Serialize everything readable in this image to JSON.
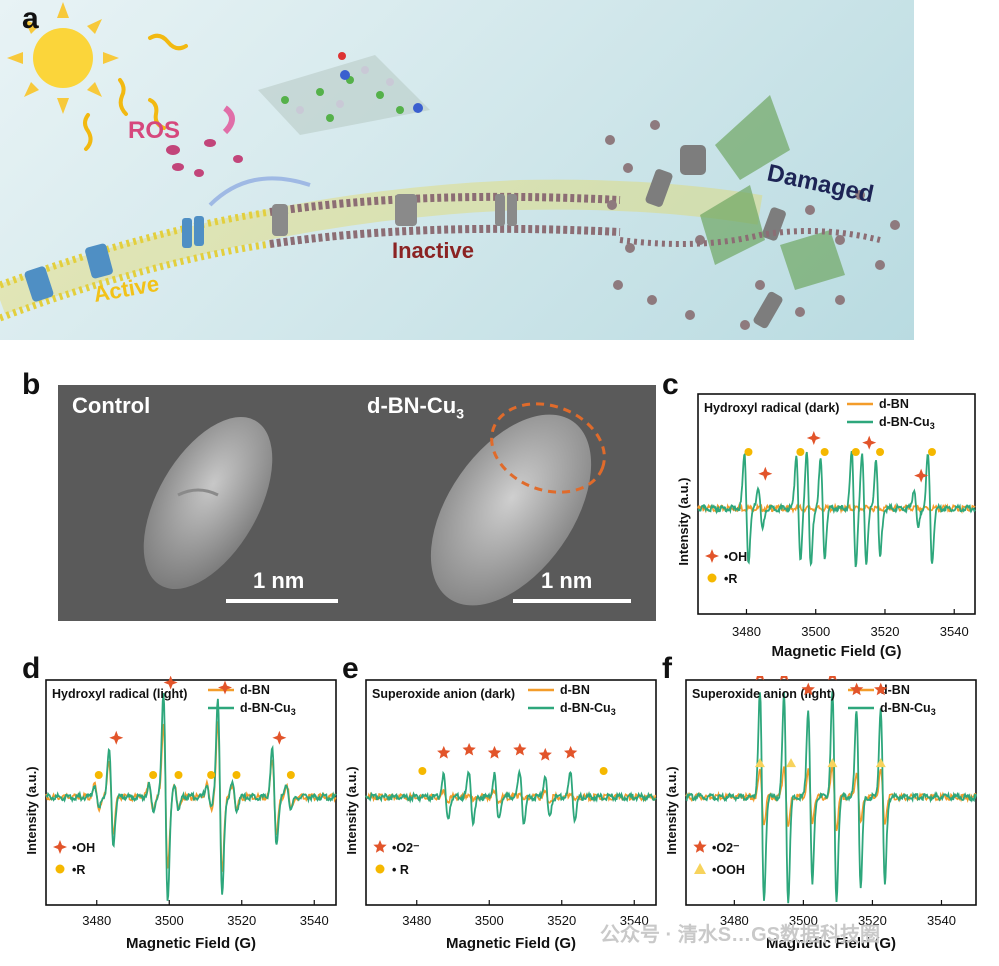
{
  "panel_labels": {
    "a": "a",
    "b": "b",
    "c": "c",
    "d": "d",
    "e": "e",
    "f": "f"
  },
  "panel_a": {
    "ros": "ROS",
    "active": "Active",
    "inactive": "Inactive",
    "damaged": "Damaged"
  },
  "panel_b": {
    "control_title": "Control",
    "treated_title": "d-BN-Cu",
    "treated_title_sub": "3",
    "scale_left": "1 nm",
    "scale_right": "1 nm"
  },
  "colors": {
    "d_bn": "#f39c2a",
    "d_bn_cu3": "#2ea77c",
    "oh_marker": "#e2542a",
    "r_marker": "#f5b800",
    "ooh_marker": "#f7d35c",
    "membrane_active": "#e9d64a",
    "membrane_inactive": "#8c6d74",
    "channel_active": "#4f8fc4",
    "channel_inactive": "#8a8a8a"
  },
  "chart_data": [
    {
      "id": "c",
      "type": "line",
      "title": "Hydroxyl radical (dark)",
      "xlabel": "Magnetic Field (G)",
      "ylabel": "Intensity (a.u.)",
      "xlim": [
        3466,
        3546
      ],
      "xticks": [
        3480,
        3500,
        3520,
        3540
      ],
      "legend": {
        "position": "top-right",
        "entries": [
          "d-BN",
          "d-BN-Cu3"
        ]
      },
      "series": [
        {
          "name": "d-BN",
          "peaks": []
        },
        {
          "name": "d-BN-Cu3",
          "peaks": [
            [
              3480,
              0.55
            ],
            [
              3484,
              0.22
            ],
            [
              3495,
              0.55
            ],
            [
              3498,
              0.6
            ],
            [
              3502,
              0.5
            ],
            [
              3511,
              0.58
            ],
            [
              3514,
              0.55
            ],
            [
              3518,
              0.5
            ],
            [
              3529,
              0.2
            ],
            [
              3533,
              0.55
            ]
          ]
        }
      ],
      "markers": {
        "oh": [
          3484,
          3498,
          3514,
          3529
        ],
        "r": [
          3480,
          3495,
          3502,
          3511,
          3518,
          3533
        ]
      },
      "marker_legend": [
        "•OH",
        "•R"
      ]
    },
    {
      "id": "d",
      "type": "line",
      "title": "Hydroxyl radical (light)",
      "xlabel": "Magnetic Field (G)",
      "ylabel": "Intensity (a.u.)",
      "xlim": [
        3466,
        3546
      ],
      "xticks": [
        3480,
        3500,
        3520,
        3540
      ],
      "legend": {
        "position": "top-right",
        "entries": [
          "d-BN",
          "d-BN-Cu3"
        ]
      },
      "series": [
        {
          "name": "d-BN",
          "peaks": [
            [
              3484,
              0.35
            ],
            [
              3499,
              0.7
            ],
            [
              3514,
              0.7
            ],
            [
              3529,
              0.35
            ],
            [
              3480,
              0.12
            ],
            [
              3495,
              0.12
            ],
            [
              3502,
              0.12
            ],
            [
              3511,
              0.12
            ],
            [
              3518,
              0.12
            ],
            [
              3533,
              0.12
            ]
          ]
        },
        {
          "name": "d-BN-Cu3",
          "peaks": [
            [
              3484,
              0.45
            ],
            [
              3499,
              1.0
            ],
            [
              3514,
              0.95
            ],
            [
              3529,
              0.45
            ],
            [
              3480,
              0.12
            ],
            [
              3495,
              0.12
            ],
            [
              3502,
              0.12
            ],
            [
              3511,
              0.12
            ],
            [
              3518,
              0.12
            ],
            [
              3533,
              0.12
            ]
          ]
        }
      ],
      "markers": {
        "oh": [
          3484,
          3499,
          3514,
          3529
        ],
        "r": [
          3480,
          3495,
          3502,
          3511,
          3518,
          3533
        ]
      },
      "marker_legend": [
        "•OH",
        "•R"
      ]
    },
    {
      "id": "e",
      "type": "line",
      "title": "Superoxide anion (dark)",
      "xlabel": "Magnetic Field (G)",
      "ylabel": "Intensity (a.u.)",
      "xlim": [
        3466,
        3546
      ],
      "xticks": [
        3480,
        3500,
        3520,
        3540
      ],
      "legend": {
        "position": "top-right",
        "entries": [
          "d-BN",
          "d-BN-Cu3"
        ]
      },
      "series": [
        {
          "name": "d-BN",
          "peaks": [
            [
              3488,
              0.04
            ],
            [
              3495,
              0.04
            ],
            [
              3502,
              0.04
            ],
            [
              3509,
              0.04
            ],
            [
              3516,
              0.04
            ],
            [
              3523,
              0.04
            ]
          ]
        },
        {
          "name": "d-BN-Cu3",
          "peaks": [
            [
              3488,
              0.22
            ],
            [
              3495,
              0.25
            ],
            [
              3502,
              0.22
            ],
            [
              3509,
              0.25
            ],
            [
              3516,
              0.2
            ],
            [
              3523,
              0.22
            ]
          ]
        }
      ],
      "markers": {
        "o2": [
          3488,
          3495,
          3502,
          3509,
          3516,
          3523
        ],
        "r": [
          3481,
          3531
        ]
      },
      "marker_legend": [
        "•O2⁻",
        "• R"
      ]
    },
    {
      "id": "f",
      "type": "line",
      "title": "Superoxide anion (light)",
      "xlabel": "Magnetic Field (G)",
      "ylabel": "Intensity (a.u.)",
      "xlim": [
        3466,
        3550
      ],
      "xticks": [
        3480,
        3500,
        3520,
        3540
      ],
      "legend": {
        "position": "top-right",
        "entries": [
          "d-BN",
          "d-BN-Cu3"
        ]
      },
      "series": [
        {
          "name": "d-BN",
          "peaks": [
            [
              3488,
              0.25
            ],
            [
              3495,
              0.3
            ],
            [
              3502,
              0.25
            ],
            [
              3509,
              0.3
            ],
            [
              3516,
              0.25
            ],
            [
              3523,
              0.25
            ]
          ]
        },
        {
          "name": "d-BN-Cu3",
          "peaks": [
            [
              3488,
              1.0
            ],
            [
              3495,
              1.0
            ],
            [
              3502,
              0.85
            ],
            [
              3509,
              1.0
            ],
            [
              3516,
              0.85
            ],
            [
              3523,
              0.85
            ]
          ]
        }
      ],
      "markers": {
        "o2": [
          3488,
          3495,
          3502,
          3509,
          3516,
          3523
        ],
        "ooh": [
          3488,
          3497,
          3509,
          3523
        ]
      },
      "marker_legend": [
        "•O2⁻",
        "•OOH"
      ]
    }
  ],
  "watermark": "公众号 · 清水S…GS数据科技圈"
}
